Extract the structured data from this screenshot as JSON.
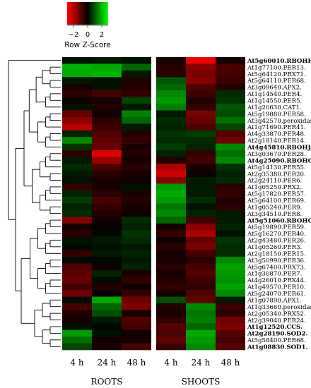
{
  "chart_data": {
    "type": "heatmap",
    "title": "",
    "color_key": {
      "label": "Row Z-Score",
      "ticks": [
        "−2",
        "0",
        "2"
      ],
      "min": -3,
      "max": 3,
      "low_color": "#ff0000",
      "mid_color": "#000000",
      "high_color": "#00ff00"
    },
    "columns": [
      "4 h",
      "24 h",
      "48 h",
      "4 h",
      "24 h",
      "48 h"
    ],
    "groups": [
      "ROOTS",
      "SHOOTS"
    ],
    "rows": [
      {
        "gene": "At5g60010.RBOHH.",
        "bold": true,
        "z": [
          0.2,
          0.3,
          0.2,
          -0.3,
          -2.8,
          -0.3
        ]
      },
      {
        "gene": "At1g77100.PER13.",
        "bold": false,
        "z": [
          2.1,
          2.0,
          1.2,
          -0.5,
          -1.6,
          -0.9
        ]
      },
      {
        "gene": "At5g64120.PRX71.",
        "bold": false,
        "z": [
          2.0,
          2.1,
          0.3,
          -0.5,
          -1.4,
          -0.8
        ]
      },
      {
        "gene": "At5g64110.PER68.",
        "bold": false,
        "z": [
          0.3,
          0.2,
          -0.4,
          1.0,
          -1.6,
          -0.7
        ]
      },
      {
        "gene": "At3g09640.APX2.",
        "bold": false,
        "z": [
          -0.3,
          0.2,
          -0.4,
          1.2,
          -0.9,
          -0.4
        ]
      },
      {
        "gene": "At1g14540.PER4.",
        "bold": false,
        "z": [
          -0.5,
          -0.8,
          -0.6,
          1.6,
          -0.7,
          0.5
        ]
      },
      {
        "gene": "At1g14550.PER5.",
        "bold": false,
        "z": [
          -0.2,
          -0.3,
          0.8,
          1.8,
          -0.4,
          0.6
        ]
      },
      {
        "gene": "At1g20630.CAT1.",
        "bold": false,
        "z": [
          0.2,
          -0.4,
          0.3,
          1.5,
          -0.6,
          1.0
        ]
      },
      {
        "gene": "At5g19880.PER58.",
        "bold": false,
        "z": [
          -1.2,
          -0.2,
          1.5,
          0.3,
          -1.4,
          0.9
        ]
      },
      {
        "gene": "At3g42570.peroxidase.",
        "bold": false,
        "z": [
          -1.6,
          -0.5,
          1.2,
          0.5,
          -1.2,
          1.3
        ]
      },
      {
        "gene": "At1g71690.PER41.",
        "bold": false,
        "z": [
          -2.2,
          -0.7,
          0.3,
          0.4,
          -0.9,
          0.8
        ]
      },
      {
        "gene": "At4g33870.PER48.",
        "bold": false,
        "z": [
          0.4,
          -1.0,
          -0.4,
          0.6,
          0.7,
          -1.0
        ]
      },
      {
        "gene": "At2g18140.PER14.",
        "bold": false,
        "z": [
          1.6,
          -1.1,
          -0.6,
          0.5,
          0.5,
          -1.3
        ]
      },
      {
        "gene": "At4g45810.RBOHJ.",
        "bold": true,
        "z": [
          0.6,
          -1.2,
          -0.3,
          0.7,
          0.4,
          1.6
        ]
      },
      {
        "gene": "At3g03670.PER28.",
        "bold": false,
        "z": [
          -0.5,
          -2.6,
          -0.4,
          0.4,
          -0.6,
          1.3
        ]
      },
      {
        "gene": "At4g25090.RBOHG.",
        "bold": true,
        "z": [
          0.3,
          -1.8,
          -0.3,
          -0.4,
          -0.8,
          1.6
        ]
      },
      {
        "gene": "At5g14130.PER55.",
        "bold": false,
        "z": [
          0.5,
          -0.9,
          -0.5,
          -2.0,
          -0.3,
          0.6
        ]
      },
      {
        "gene": "At2g35380.PER20.",
        "bold": false,
        "z": [
          0.3,
          -0.5,
          -0.3,
          -2.4,
          -0.2,
          0.4
        ]
      },
      {
        "gene": "At2g24110.PER6.",
        "bold": false,
        "z": [
          0.2,
          -0.3,
          -0.2,
          -1.6,
          0.3,
          0.5
        ]
      },
      {
        "gene": "At1g05250.PRX2.",
        "bold": false,
        "z": [
          -0.6,
          -0.3,
          0.2,
          1.8,
          0.3,
          -0.5
        ]
      },
      {
        "gene": "At5g17820.PER57.",
        "bold": false,
        "z": [
          0.4,
          -0.5,
          -0.3,
          2.0,
          0.3,
          -0.6
        ]
      },
      {
        "gene": "At5g64100.PER69.",
        "bold": false,
        "z": [
          0.7,
          -0.8,
          -0.4,
          1.8,
          0.5,
          -0.4
        ]
      },
      {
        "gene": "At1g05240.PER9.",
        "bold": false,
        "z": [
          0.4,
          -0.6,
          -0.3,
          1.4,
          0.2,
          -0.5
        ]
      },
      {
        "gene": "At3g34510.PER8.",
        "bold": false,
        "z": [
          0.5,
          -0.4,
          -0.2,
          1.6,
          0.4,
          0.3
        ]
      },
      {
        "gene": "At5g51060.RBOHC.",
        "bold": true,
        "z": [
          -1.5,
          -0.2,
          0.5,
          1.2,
          -0.8,
          0.3
        ]
      },
      {
        "gene": "At5g19890.PER59.",
        "bold": false,
        "z": [
          -0.3,
          -0.1,
          0.4,
          -0.3,
          -1.6,
          0.4
        ]
      },
      {
        "gene": "At5g16270.PER40.",
        "bold": false,
        "z": [
          -0.5,
          0.1,
          0.6,
          -0.6,
          -2.0,
          0.2
        ]
      },
      {
        "gene": "At2g43480.PER26.",
        "bold": false,
        "z": [
          0.2,
          0.3,
          0.5,
          -0.2,
          -1.2,
          0.6
        ]
      },
      {
        "gene": "At1g05260.PER3.",
        "bold": false,
        "z": [
          0.1,
          0.2,
          0.3,
          -0.5,
          -1.4,
          0.5
        ]
      },
      {
        "gene": "At2g18150.PER15.",
        "bold": false,
        "z": [
          -0.6,
          0.3,
          0.4,
          -0.3,
          -0.8,
          0.5
        ]
      },
      {
        "gene": "At3g50990.PER36.",
        "bold": false,
        "z": [
          0.1,
          0.1,
          0.3,
          -0.3,
          -0.5,
          1.6
        ]
      },
      {
        "gene": "At5g67400.PRX73.",
        "bold": false,
        "z": [
          -0.9,
          -0.2,
          0.4,
          -0.5,
          -0.8,
          1.9
        ]
      },
      {
        "gene": "At1g30870.PER7.",
        "bold": false,
        "z": [
          -1.1,
          0.4,
          -0.3,
          -0.3,
          -1.0,
          1.8
        ]
      },
      {
        "gene": "At4g26010.PRX44.",
        "bold": false,
        "z": [
          -1.2,
          0.1,
          -0.6,
          -0.4,
          -0.7,
          1.7
        ]
      },
      {
        "gene": "At1g49570.PER10.",
        "bold": false,
        "z": [
          -0.8,
          -0.4,
          -0.2,
          -0.6,
          -0.6,
          1.9
        ]
      },
      {
        "gene": "At5g24070.PER61.",
        "bold": false,
        "z": [
          -1.3,
          -0.1,
          -0.6,
          -0.2,
          -0.9,
          1.6
        ]
      },
      {
        "gene": "At1g07890.APX1.",
        "bold": false,
        "z": [
          0.1,
          1.9,
          -1.3,
          0.9,
          -1.1,
          0.3
        ]
      },
      {
        "gene": "At1g33660.peroxidase.",
        "bold": false,
        "z": [
          -0.8,
          1.2,
          -1.5,
          -0.4,
          1.6,
          -0.7
        ]
      },
      {
        "gene": "At2g05340.PRX52.",
        "bold": false,
        "z": [
          -0.4,
          0.9,
          -0.3,
          -0.3,
          1.4,
          -0.5
        ]
      },
      {
        "gene": "At2g39040.PER24.",
        "bold": false,
        "z": [
          -0.3,
          0.3,
          -0.9,
          -0.6,
          1.5,
          -1.3
        ]
      },
      {
        "gene": "At1g12520.CCS.",
        "bold": true,
        "z": [
          0.2,
          0.1,
          -0.8,
          -1.0,
          1.2,
          -1.5
        ]
      },
      {
        "gene": "At2g28190.SOD2.",
        "bold": true,
        "z": [
          1.8,
          0.2,
          -0.2,
          -0.9,
          2.0,
          -1.0
        ]
      },
      {
        "gene": "At5g58400.PER68.",
        "bold": false,
        "z": [
          1.3,
          -0.2,
          -0.3,
          -1.1,
          1.8,
          -0.8
        ]
      },
      {
        "gene": "At1g08830.SOD1.",
        "bold": true,
        "z": [
          0.8,
          -0.3,
          -0.8,
          -0.7,
          1.6,
          -1.0
        ]
      }
    ]
  }
}
